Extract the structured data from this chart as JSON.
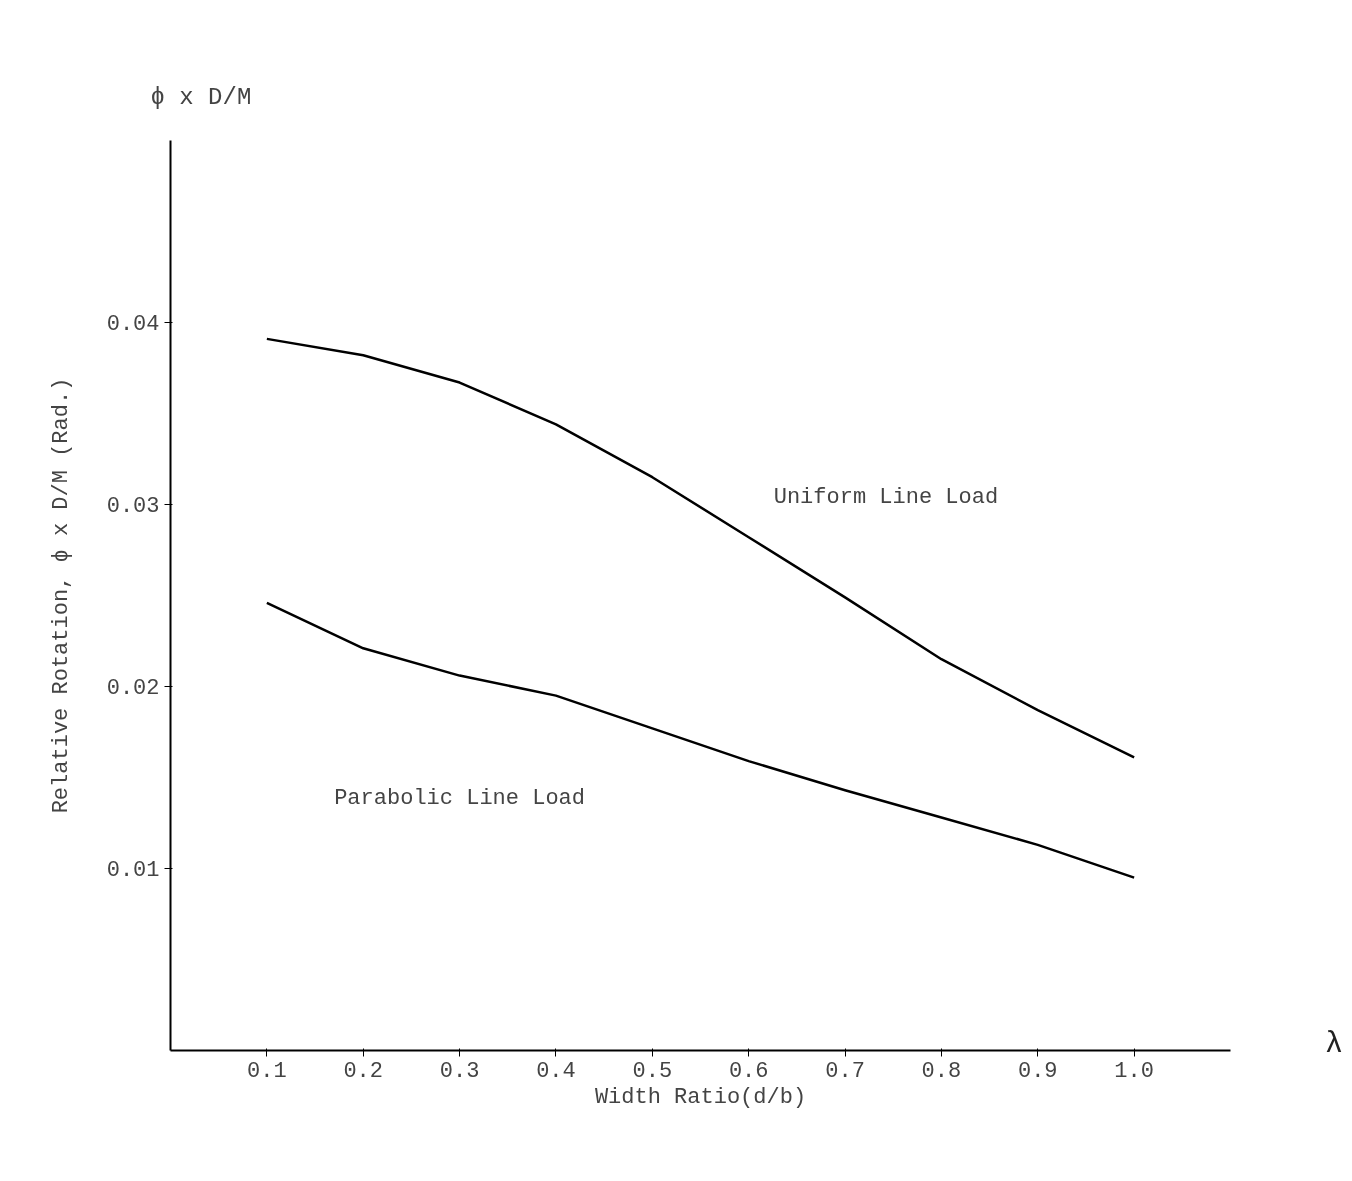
{
  "chart_data": {
    "type": "line",
    "xlabel": "Width Ratio(d/b)",
    "ylabel": "Relative Rotation, ϕ x D/M (Rad.)",
    "x": [
      0.1,
      0.2,
      0.3,
      0.4,
      0.5,
      0.6,
      0.7,
      0.8,
      0.9,
      1.0
    ],
    "series": [
      {
        "color": "#000000",
        "values": [
          0.0391,
          0.0382,
          0.0367,
          0.0344,
          0.0315,
          0.0282,
          0.0249,
          0.0215,
          0.0187,
          0.0161
        ]
      },
      {
        "color": "#000000",
        "values": [
          0.0246,
          0.0221,
          0.0206,
          0.0195,
          0.0177,
          0.0159,
          0.0143,
          0.0128,
          0.0113,
          0.0095
        ]
      }
    ],
    "xlim": [
      0,
      1.1
    ],
    "ylim": [
      0,
      0.05
    ],
    "xticks": [
      0.1,
      0.2,
      0.3,
      0.4,
      0.5,
      0.6,
      0.7,
      0.8,
      0.9,
      {
        "value": 1.0,
        "label": "1.0"
      }
    ],
    "yticks": [
      0.01,
      0.02,
      0.03,
      0.04
    ],
    "annotations": [
      "Uniform Line Load",
      "Parabolic Line Load",
      "ϕ x D/M",
      "λ"
    ],
    "grid": false,
    "marker": "none",
    "line_style": "solid"
  }
}
